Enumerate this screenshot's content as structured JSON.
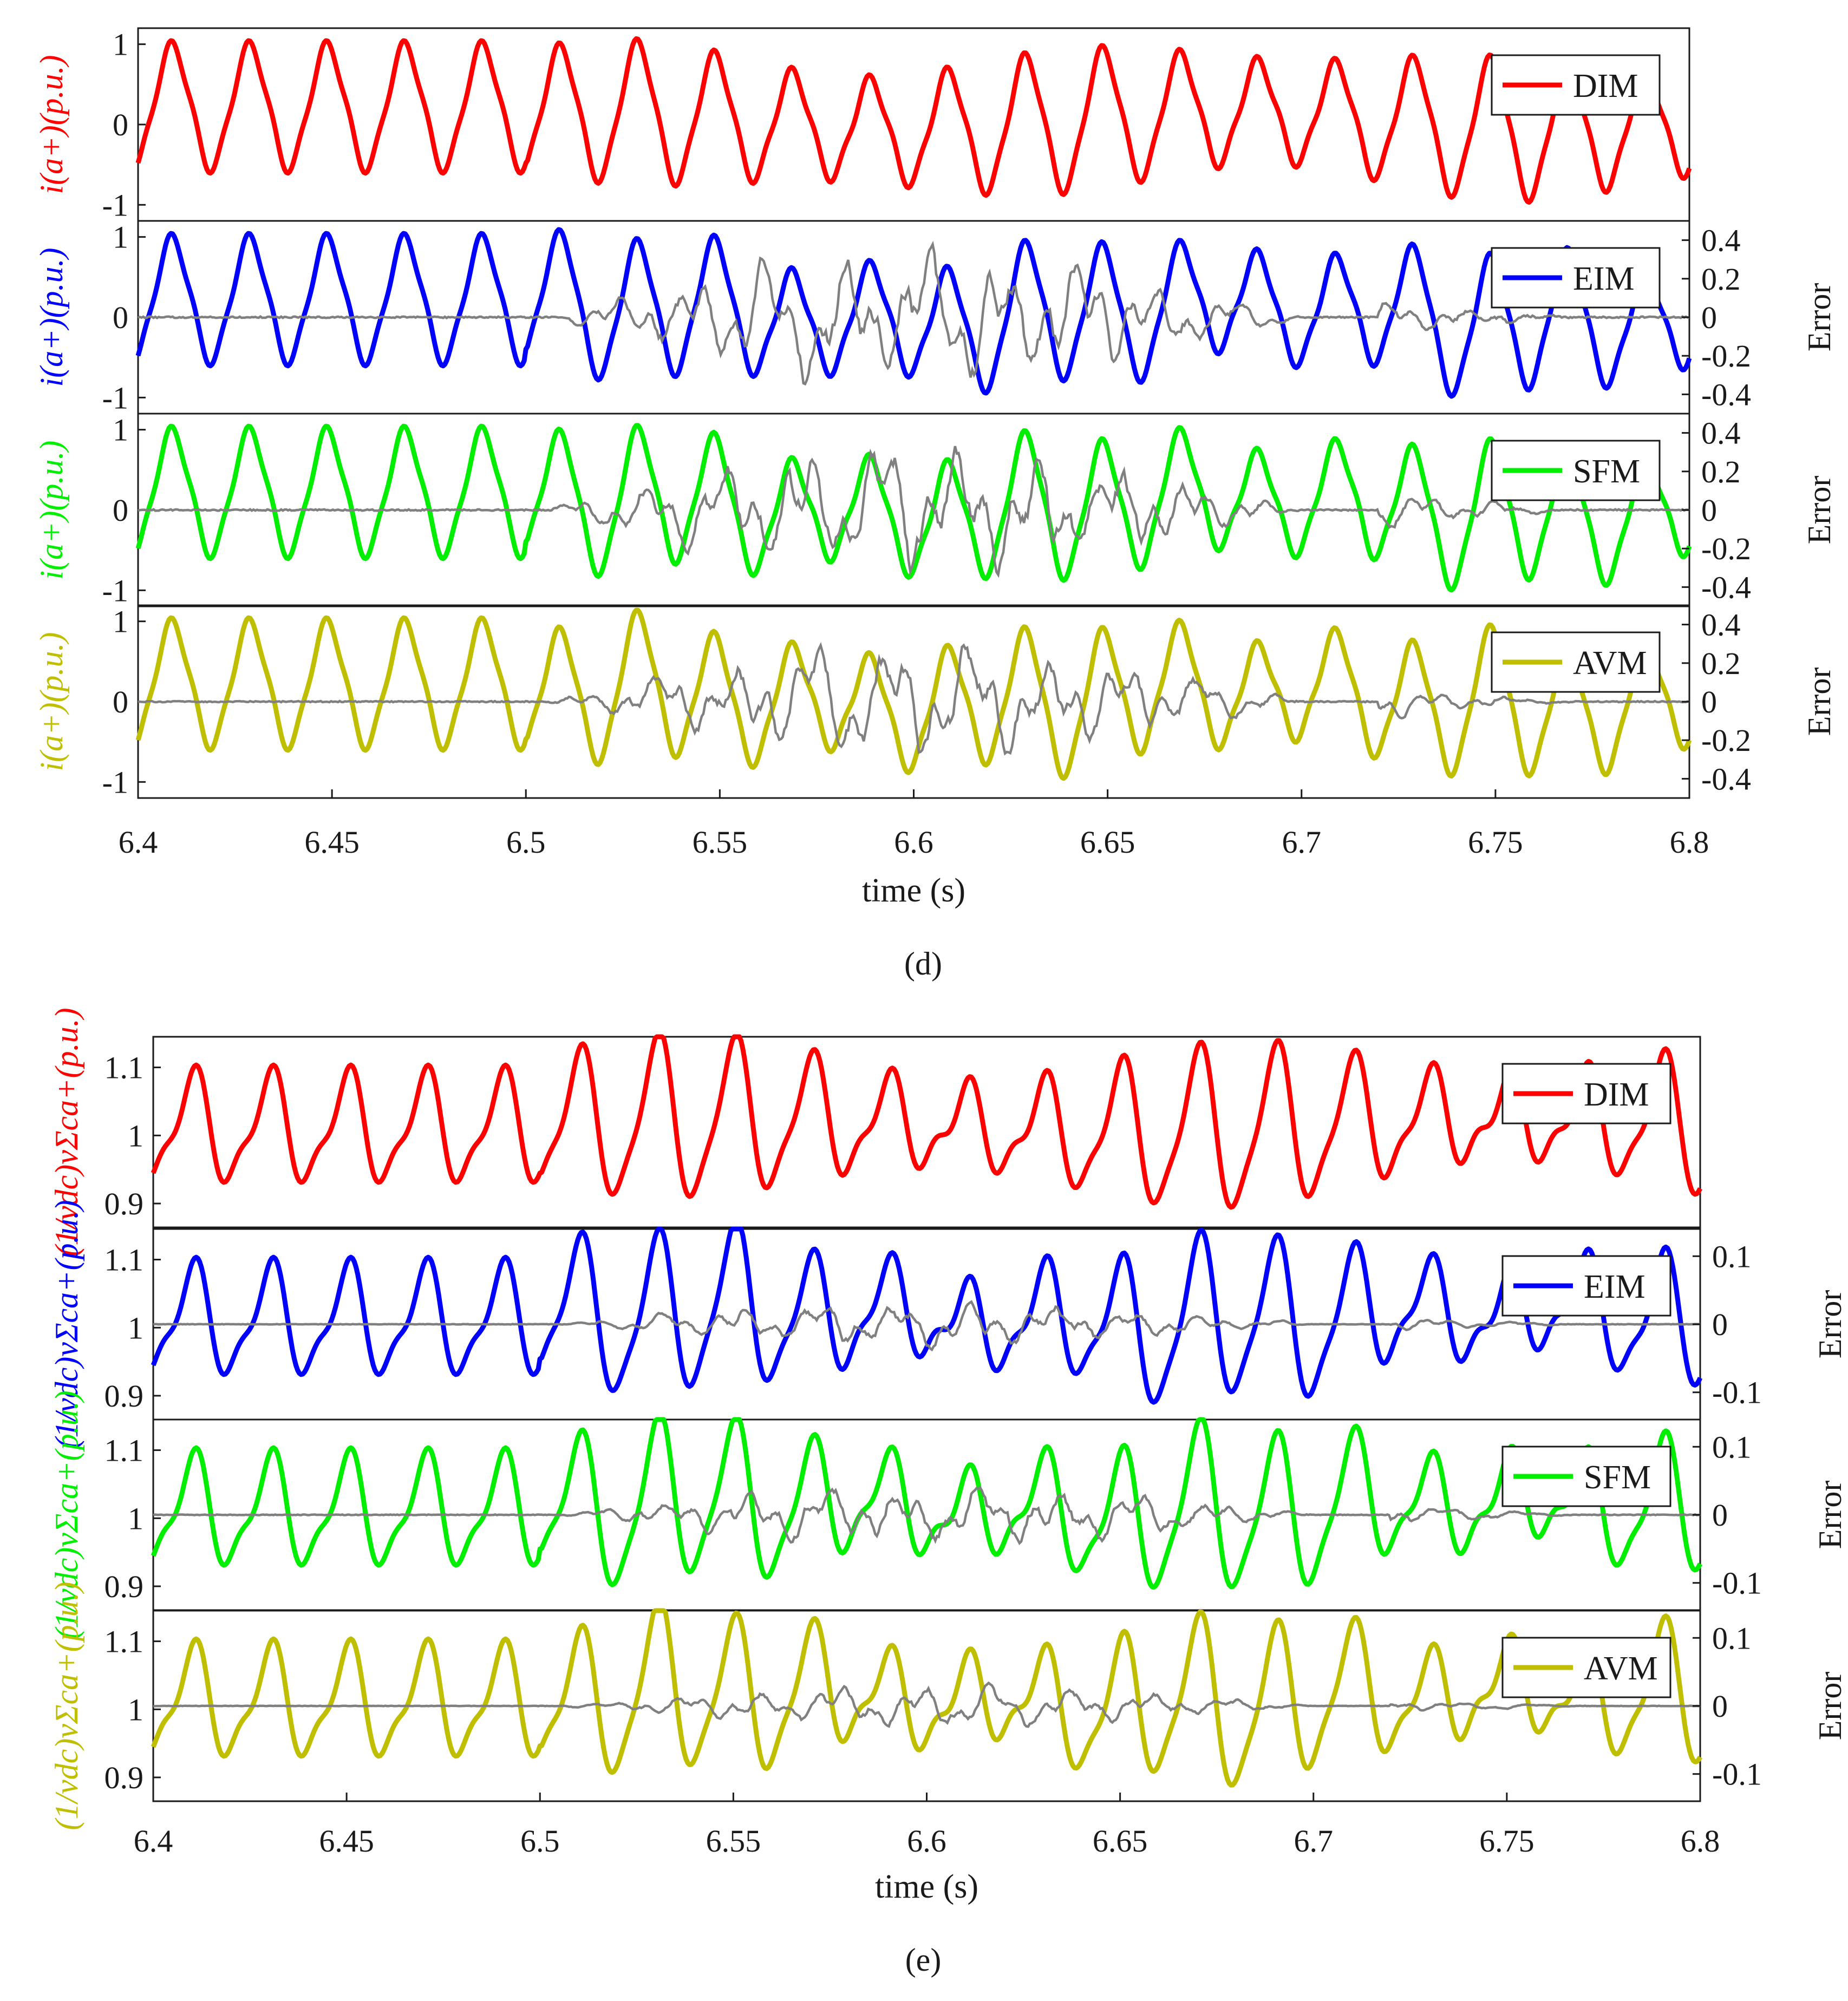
{
  "colors": {
    "DIM": "#ff0000",
    "EIM": "#0000ff",
    "SFM": "#00ee00",
    "AVM": "#bfbf00",
    "error": "#808080",
    "axis": "#1a1a1a"
  },
  "figure": {
    "panel_d_caption": "(d)",
    "panel_d_caption_letter": "d",
    "panel_e_caption": "(e)",
    "panel_e_caption_letter": "e"
  },
  "chart_data": [
    {
      "type": "line",
      "panel": "d",
      "xlabel": "time (s)",
      "xlim": [
        6.4,
        6.8
      ],
      "xticks": [
        "6.4",
        "6.45",
        "6.5",
        "6.55",
        "6.6",
        "6.65",
        "6.7",
        "6.75",
        "6.8"
      ],
      "subplots": [
        {
          "legend": "DIM",
          "ylabel": "i_(a+)(p.u.)",
          "ylabel_text": "i(a+)(p.u.)",
          "ylim": [
            -1.2,
            1.2
          ],
          "yticks": [
            "1",
            "0",
            "-1"
          ],
          "error_axis": null,
          "signal": {
            "freq_hz": 50,
            "offset": 0.2,
            "amp_base": 0.75,
            "phase_shift": 0.0,
            "disturbance_start": 6.5
          }
        },
        {
          "legend": "EIM",
          "ylabel": "i_(a+)(p.u.)",
          "ylabel_text": "i(a+)(p.u.)",
          "ylim": [
            -1.2,
            1.2
          ],
          "yticks": [
            "1",
            "0",
            "-1"
          ],
          "error_ylim": [
            -0.5,
            0.5
          ],
          "error_yticks": [
            "0.4",
            "0.2",
            "0",
            "-0.2",
            "-0.4"
          ],
          "error_label": "Error",
          "error_amp_peak": 0.45
        },
        {
          "legend": "SFM",
          "ylabel": "i_(a+)(p.u.)",
          "ylabel_text": "i(a+)(p.u.)",
          "ylim": [
            -1.2,
            1.2
          ],
          "yticks": [
            "1",
            "0",
            "-1"
          ],
          "error_ylim": [
            -0.5,
            0.5
          ],
          "error_yticks": [
            "0.4",
            "0.2",
            "0",
            "-0.2",
            "-0.4"
          ],
          "error_label": "Error",
          "error_amp_peak": 0.45
        },
        {
          "legend": "AVM",
          "ylabel": "i_(a+)(p.u.)",
          "ylabel_text": "i(a+)(p.u.)",
          "ylim": [
            -1.2,
            1.2
          ],
          "yticks": [
            "1",
            "0",
            "-1"
          ],
          "error_ylim": [
            -0.5,
            0.5
          ],
          "error_yticks": [
            "0.4",
            "0.2",
            "0",
            "-0.2",
            "-0.4"
          ],
          "error_label": "Error",
          "error_amp_peak": 0.38
        }
      ]
    },
    {
      "type": "line",
      "panel": "e",
      "xlabel": "time (s)",
      "xlim": [
        6.4,
        6.8
      ],
      "xticks": [
        "6.4",
        "6.45",
        "6.5",
        "6.55",
        "6.6",
        "6.65",
        "6.7",
        "6.75",
        "6.8"
      ],
      "subplots": [
        {
          "legend": "DIM",
          "ylabel": "(1/v_dc) v^Σ_c,a+ (p.u.)",
          "ylabel_text": "(1/vdc)vΣca+(p.u.)",
          "ylim": [
            0.865,
            1.145
          ],
          "yticks": [
            "1.1",
            "1",
            "0.9"
          ],
          "error_axis": null
        },
        {
          "legend": "EIM",
          "ylabel": "(1/v_dc) v^Σ_c,a+ (p.u.)",
          "ylabel_text": "(1/vdc)vΣca+(p.u.)",
          "ylim": [
            0.865,
            1.145
          ],
          "yticks": [
            "1.1",
            "1",
            "0.9"
          ],
          "error_ylim": [
            -0.14,
            0.14
          ],
          "error_yticks": [
            "0.1",
            "0",
            "-0.1"
          ],
          "error_label": "Error",
          "error_amp_peak": 0.045
        },
        {
          "legend": "SFM",
          "ylabel": "(1/v_dc) v^Σ_c,a+ (p.u.)",
          "ylabel_text": "(1/vdc)vΣca+(p.u.)",
          "ylim": [
            0.865,
            1.145
          ],
          "yticks": [
            "1.1",
            "1",
            "0.9"
          ],
          "error_ylim": [
            -0.14,
            0.14
          ],
          "error_yticks": [
            "0.1",
            "0",
            "-0.1"
          ],
          "error_label": "Error",
          "error_amp_peak": 0.06
        },
        {
          "legend": "AVM",
          "ylabel": "(1/v_dc) v^Σ_c,a+ (p.u.)",
          "ylabel_text": "(1/vdc)vΣca+(p.u.)",
          "ylim": [
            0.865,
            1.145
          ],
          "yticks": [
            "1.1",
            "1",
            "0.9"
          ],
          "error_ylim": [
            -0.14,
            0.14
          ],
          "error_yticks": [
            "0.1",
            "0",
            "-0.1"
          ],
          "error_label": "Error",
          "error_amp_peak": 0.04
        }
      ]
    }
  ]
}
